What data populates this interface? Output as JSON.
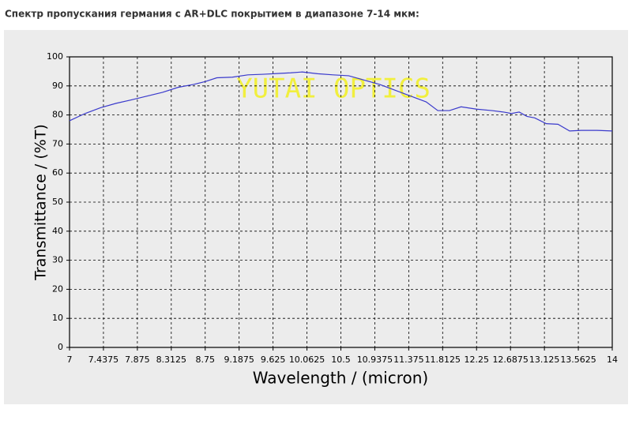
{
  "chart_data": {
    "type": "line",
    "title": "Спектр пропускания германия с AR+DLC покрытием в диапазоне 7-14 мкм:",
    "xlabel": "Wavelength / (micron)",
    "ylabel": "Transmittance / (%T)",
    "annotation": "YUTAI OPTICS",
    "x": [
      7,
      7.2,
      7.4,
      7.6,
      7.8,
      8.0,
      8.2,
      8.4,
      8.6,
      8.75,
      8.9,
      9.1,
      9.3,
      9.5,
      9.7,
      9.85,
      10.0,
      10.2,
      10.4,
      10.6,
      10.8,
      11.0,
      11.2,
      11.4,
      11.6,
      11.75,
      11.9,
      12.05,
      12.25,
      12.45,
      12.6,
      12.7,
      12.8,
      12.9,
      13.0,
      13.15,
      13.3,
      13.45,
      13.6,
      13.8,
      14.0
    ],
    "series": [
      {
        "name": "Transmittance",
        "color": "#3a3acc",
        "values": [
          78,
          80.5,
          82.5,
          84,
          85.2,
          86.5,
          87.8,
          89.5,
          90.5,
          91.5,
          92.8,
          93,
          93.8,
          94,
          94.3,
          94.5,
          94.8,
          94.2,
          93.8,
          93.5,
          92,
          90.5,
          88.5,
          86.5,
          84.5,
          81.5,
          81.5,
          82.8,
          82,
          81.5,
          81,
          80.5,
          81,
          79.5,
          79,
          77,
          76.8,
          74.5,
          74.7,
          74.7,
          74.5
        ]
      }
    ],
    "xlim": [
      7,
      14
    ],
    "xticks": [
      7,
      7.4375,
      7.875,
      8.3125,
      8.75,
      9.1875,
      9.625,
      10.0625,
      10.5,
      10.9375,
      11.375,
      11.8125,
      12.25,
      12.6875,
      13.125,
      13.5625,
      14
    ],
    "ylim": [
      0,
      100
    ],
    "yticks": [
      0,
      10,
      20,
      30,
      40,
      50,
      60,
      70,
      80,
      90,
      100
    ],
    "grid": true
  }
}
